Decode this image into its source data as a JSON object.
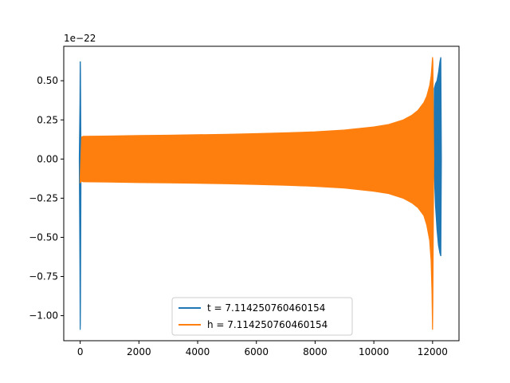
{
  "chart_data": {
    "type": "line",
    "offset_text": "1e−22",
    "xlim": [
      -560,
      12900
    ],
    "ylim": [
      -1.16,
      0.72
    ],
    "grid": false,
    "legend_position": "lower center",
    "x_ticks": [
      {
        "value": 0,
        "label": "0"
      },
      {
        "value": 2000,
        "label": "2000"
      },
      {
        "value": 4000,
        "label": "4000"
      },
      {
        "value": 6000,
        "label": "6000"
      },
      {
        "value": 8000,
        "label": "8000"
      },
      {
        "value": 10000,
        "label": "10000"
      },
      {
        "value": 12000,
        "label": "12000"
      }
    ],
    "y_ticks": [
      {
        "value": 0.5,
        "label": "0.50"
      },
      {
        "value": 0.25,
        "label": "0.25"
      },
      {
        "value": 0.0,
        "label": "0.00"
      },
      {
        "value": -0.25,
        "label": "−0.25"
      },
      {
        "value": -0.5,
        "label": "−0.50"
      },
      {
        "value": -0.75,
        "label": "−0.75"
      },
      {
        "value": -1.0,
        "label": "−1.00"
      }
    ],
    "series": [
      {
        "name": "t = 7.114250760460154",
        "color": "#1f77b4",
        "description": "oscillation envelope (upper, lower) vs sample index",
        "x": [
          -30,
          -10,
          0,
          5,
          10,
          20,
          30,
          40,
          12000,
          12040,
          12060,
          12100,
          12150,
          12200,
          12250,
          12280,
          12300
        ],
        "upper": [
          0.0,
          0.35,
          0.62,
          0.62,
          0.55,
          0.2,
          0.0,
          0.0,
          0.0,
          0.0,
          0.45,
          0.48,
          0.5,
          0.55,
          0.62,
          0.65,
          0.0
        ],
        "lower": [
          0.0,
          -0.7,
          -1.09,
          -1.05,
          -0.9,
          -0.4,
          0.0,
          0.0,
          0.0,
          0.0,
          -0.1,
          -0.3,
          -0.45,
          -0.55,
          -0.6,
          -0.62,
          0.0
        ]
      },
      {
        "name": "h = 7.114250760460154",
        "color": "#ff7f0e",
        "description": "oscillation envelope (upper, lower) vs sample index",
        "x": [
          0,
          50,
          100,
          1000,
          2000,
          3000,
          4000,
          5000,
          6000,
          7000,
          8000,
          9000,
          10000,
          10500,
          11000,
          11300,
          11500,
          11700,
          11800,
          11900,
          11950,
          11980,
          12000,
          12010,
          12040
        ],
        "upper": [
          -0.12,
          0.14,
          0.145,
          0.147,
          0.15,
          0.152,
          0.155,
          0.158,
          0.162,
          0.167,
          0.174,
          0.185,
          0.205,
          0.22,
          0.25,
          0.28,
          0.31,
          0.36,
          0.4,
          0.47,
          0.53,
          0.6,
          0.65,
          0.62,
          0.0
        ],
        "lower": [
          -0.15,
          -0.14,
          -0.145,
          -0.147,
          -0.15,
          -0.152,
          -0.155,
          -0.158,
          -0.162,
          -0.167,
          -0.174,
          -0.185,
          -0.205,
          -0.22,
          -0.25,
          -0.28,
          -0.31,
          -0.36,
          -0.42,
          -0.52,
          -0.65,
          -0.85,
          -1.09,
          -0.9,
          0.0
        ]
      }
    ]
  }
}
